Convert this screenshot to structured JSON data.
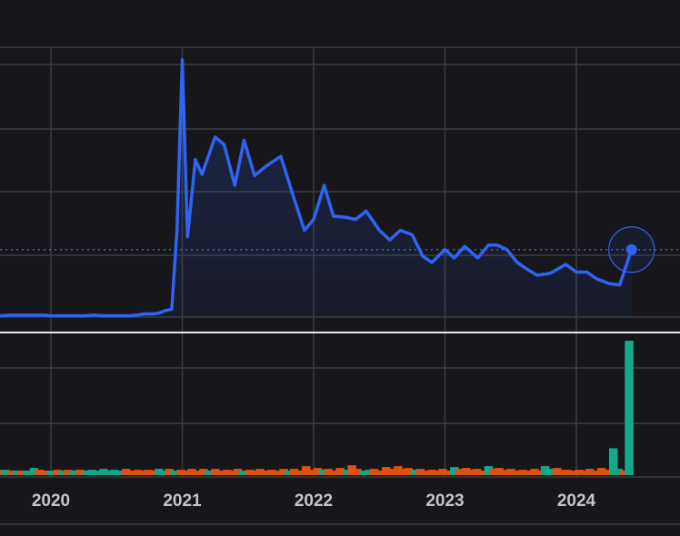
{
  "chart_data": {
    "type": "line",
    "x_ticks": [
      "2020",
      "2021",
      "2022",
      "2023",
      "2024"
    ],
    "price": {
      "x": [
        2019.62,
        2019.7,
        2019.8,
        2019.9,
        2019.95,
        2020.0,
        2020.1,
        2020.2,
        2020.25,
        2020.33,
        2020.4,
        2020.5,
        2020.6,
        2020.65,
        2020.72,
        2020.78,
        2020.82,
        2020.87,
        2020.92,
        2020.96,
        2021.0,
        2021.04,
        2021.1,
        2021.15,
        2021.25,
        2021.32,
        2021.4,
        2021.47,
        2021.55,
        2021.64,
        2021.75,
        2021.85,
        2021.93,
        2022.0,
        2022.08,
        2022.15,
        2022.25,
        2022.32,
        2022.4,
        2022.5,
        2022.58,
        2022.66,
        2022.75,
        2022.83,
        2022.9,
        2023.0,
        2023.07,
        2023.15,
        2023.25,
        2023.33,
        2023.4,
        2023.47,
        2023.55,
        2023.62,
        2023.7,
        2023.8,
        2023.92,
        2024.0,
        2024.08,
        2024.15,
        2024.25,
        2024.33,
        2024.42
      ],
      "y": [
        0.02,
        0.03,
        0.03,
        0.03,
        0.03,
        0.02,
        0.02,
        0.02,
        0.02,
        0.03,
        0.02,
        0.02,
        0.02,
        0.03,
        0.05,
        0.05,
        0.06,
        0.1,
        0.12,
        1.35,
        4.0,
        1.25,
        2.45,
        2.22,
        2.8,
        2.68,
        2.05,
        2.75,
        2.2,
        2.35,
        2.5,
        1.85,
        1.35,
        1.52,
        2.05,
        1.57,
        1.55,
        1.52,
        1.65,
        1.35,
        1.2,
        1.35,
        1.28,
        0.95,
        0.85,
        1.05,
        0.92,
        1.1,
        0.92,
        1.12,
        1.12,
        1.05,
        0.85,
        0.75,
        0.65,
        0.68,
        0.82,
        0.7,
        0.7,
        0.6,
        0.52,
        0.5,
        1.05
      ]
    },
    "volume": {
      "x": [
        2019.62,
        2019.65,
        2019.7,
        2019.74,
        2019.78,
        2019.82,
        2019.87,
        2019.91,
        2019.95,
        2020.0,
        2020.05,
        2020.09,
        2020.13,
        2020.17,
        2020.22,
        2020.27,
        2020.31,
        2020.35,
        2020.4,
        2020.44,
        2020.48,
        2020.52,
        2020.57,
        2020.61,
        2020.66,
        2020.7,
        2020.74,
        2020.78,
        2020.82,
        2020.86,
        2020.9,
        2020.94,
        2020.99,
        2021.03,
        2021.07,
        2021.12,
        2021.16,
        2021.2,
        2021.25,
        2021.29,
        2021.34,
        2021.38,
        2021.42,
        2021.46,
        2021.51,
        2021.55,
        2021.59,
        2021.64,
        2021.68,
        2021.72,
        2021.77,
        2021.81,
        2021.85,
        2021.9,
        2021.94,
        2021.98,
        2022.03,
        2022.07,
        2022.11,
        2022.16,
        2022.2,
        2022.25,
        2022.29,
        2022.33,
        2022.38,
        2022.42,
        2022.46,
        2022.5,
        2022.55,
        2022.59,
        2022.64,
        2022.68,
        2022.72,
        2022.77,
        2022.81,
        2022.85,
        2022.9,
        2022.94,
        2022.98,
        2023.03,
        2023.07,
        2023.11,
        2023.16,
        2023.2,
        2023.24,
        2023.28,
        2023.33,
        2023.37,
        2023.41,
        2023.46,
        2023.5,
        2023.54,
        2023.59,
        2023.63,
        2023.68,
        2023.72,
        2023.76,
        2023.8,
        2023.85,
        2023.89,
        2023.93,
        2023.97,
        2024.02,
        2024.06,
        2024.1,
        2024.15,
        2024.19,
        2024.23,
        2024.28,
        2024.32,
        2024.36,
        2024.4
      ],
      "v": [
        12,
        12,
        8,
        10,
        6,
        10,
        16,
        12,
        9,
        9,
        12,
        8,
        12,
        8,
        12,
        8,
        12,
        8,
        14,
        10,
        12,
        8,
        14,
        10,
        12,
        8,
        12,
        8,
        14,
        10,
        14,
        8,
        12,
        8,
        14,
        10,
        14,
        8,
        14,
        10,
        12,
        8,
        14,
        10,
        12,
        8,
        14,
        10,
        12,
        8,
        14,
        10,
        14,
        8,
        20,
        12,
        16,
        12,
        14,
        10,
        16,
        12,
        22,
        14,
        10,
        12,
        14,
        10,
        18,
        14,
        20,
        14,
        16,
        12,
        14,
        10,
        12,
        8,
        14,
        10,
        18,
        14,
        16,
        12,
        14,
        10,
        20,
        14,
        16,
        12,
        14,
        10,
        12,
        8,
        14,
        10,
        20,
        14,
        16,
        12,
        12,
        8,
        12,
        8,
        14,
        10,
        16,
        12,
        60,
        14,
        10,
        300
      ],
      "up": [
        false,
        true,
        false,
        true,
        false,
        true,
        true,
        false,
        false,
        true,
        false,
        true,
        false,
        true,
        false,
        true,
        true,
        true,
        true,
        true,
        true,
        true,
        false,
        false,
        false,
        false,
        false,
        false,
        true,
        true,
        false,
        true,
        false,
        false,
        false,
        false,
        false,
        true,
        false,
        false,
        false,
        false,
        false,
        true,
        false,
        false,
        false,
        false,
        false,
        false,
        false,
        true,
        false,
        false,
        false,
        false,
        false,
        true,
        false,
        false,
        false,
        true,
        false,
        false,
        true,
        true,
        false,
        false,
        false,
        false,
        false,
        false,
        false,
        true,
        false,
        false,
        false,
        false,
        false,
        false,
        true,
        false,
        false,
        false,
        false,
        false,
        true,
        false,
        false,
        false,
        false,
        false,
        false,
        false,
        false,
        false,
        true,
        true,
        false,
        false,
        false,
        false,
        false,
        false,
        false,
        false,
        false,
        false,
        true,
        true,
        false,
        true
      ]
    },
    "colors": {
      "line": "#2f63f3",
      "up": "#13a88a",
      "down": "#e0500f",
      "grid": "#3a3a3f",
      "separator": "#e8e8e8",
      "marker": "#2f63f3"
    }
  }
}
